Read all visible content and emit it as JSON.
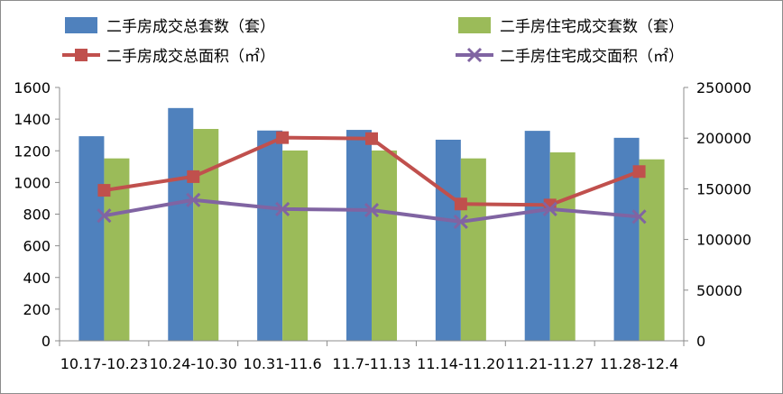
{
  "chart_data": {
    "type": "bar",
    "categories": [
      "10.17-10.23",
      "10.24-10.30",
      "10.31-11.6",
      "11.7-11.13",
      "11.14-11.20",
      "11.21-11.27",
      "11.28-12.4"
    ],
    "y_left": {
      "ylim": [
        0,
        1600
      ],
      "ticks": [
        "0",
        "200",
        "400",
        "600",
        "800",
        "1000",
        "1200",
        "1400",
        "1600"
      ]
    },
    "y_right": {
      "ylim": [
        0,
        250000
      ],
      "ticks": [
        "0",
        "50000",
        "100000",
        "150000",
        "200000",
        "250000"
      ]
    },
    "series": [
      {
        "name": "二手房成交总套数（套）",
        "type": "bar",
        "axis": "left",
        "color": "#4F81BD",
        "values": [
          1292,
          1470,
          1328,
          1332,
          1270,
          1326,
          1282
        ]
      },
      {
        "name": "二手房住宅成交套数（套）",
        "type": "bar",
        "axis": "left",
        "color": "#9BBB59",
        "values": [
          1152,
          1338,
          1202,
          1202,
          1152,
          1190,
          1146
        ]
      },
      {
        "name": "二手房成交总面积（㎡）",
        "type": "line",
        "axis": "right",
        "color": "#C0504D",
        "marker": "square",
        "values": [
          148500,
          162000,
          200500,
          199500,
          135000,
          134000,
          167000
        ]
      },
      {
        "name": "二手房住宅成交面积（㎡）",
        "type": "line",
        "axis": "right",
        "color": "#8064A2",
        "marker": "x",
        "values": [
          123500,
          139000,
          130000,
          129000,
          117500,
          130000,
          122500
        ]
      }
    ],
    "legend_position": "top",
    "grid": false
  }
}
